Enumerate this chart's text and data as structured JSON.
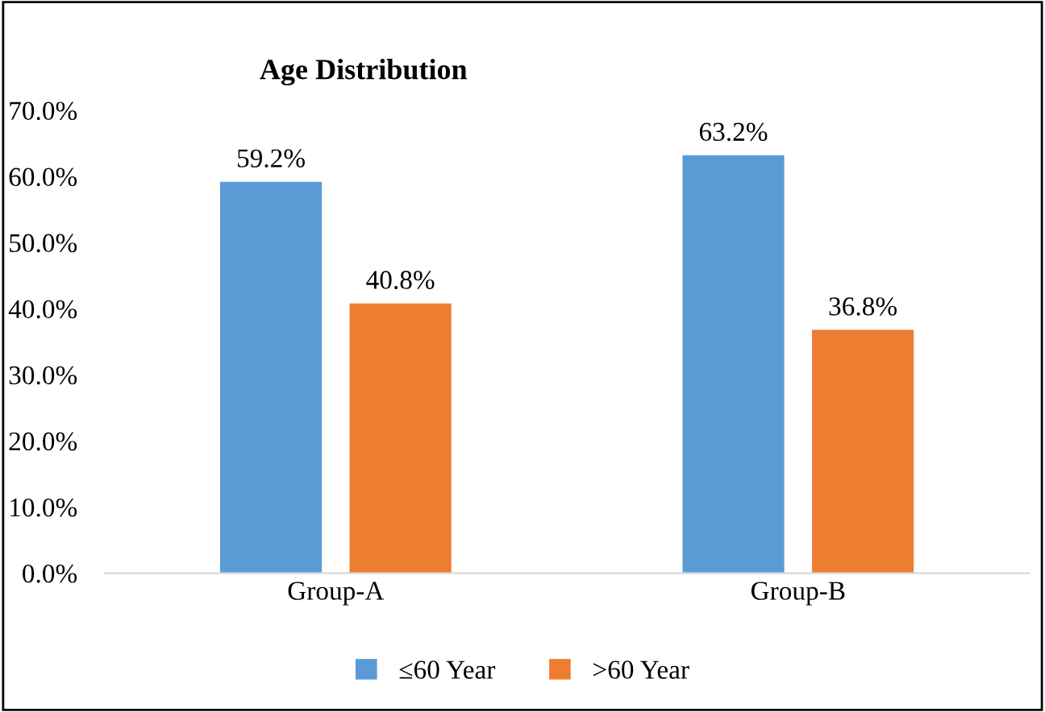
{
  "chart_data": {
    "type": "bar",
    "title": "Age Distribution",
    "categories": [
      "Group-A",
      "Group-B"
    ],
    "series": [
      {
        "name": "≤60 Year",
        "color": "#5b9bd5",
        "values": [
          59.2,
          63.2
        ],
        "value_labels": [
          "59.2%",
          "63.2%"
        ]
      },
      {
        "name": ">60 Year",
        "color": "#ed7d31",
        "values": [
          40.8,
          36.8
        ],
        "value_labels": [
          "40.8%",
          "36.8%"
        ]
      }
    ],
    "ylim": [
      0,
      70
    ],
    "yticks": [
      {
        "value": 0,
        "label": "0.0%"
      },
      {
        "value": 10,
        "label": "10.0%"
      },
      {
        "value": 20,
        "label": "20.0%"
      },
      {
        "value": 30,
        "label": "30.0%"
      },
      {
        "value": 40,
        "label": "40.0%"
      },
      {
        "value": 50,
        "label": "50.0%"
      },
      {
        "value": 60,
        "label": "60.0%"
      },
      {
        "value": 70,
        "label": "70.0%"
      }
    ],
    "grid": false,
    "legend": "bottom"
  }
}
